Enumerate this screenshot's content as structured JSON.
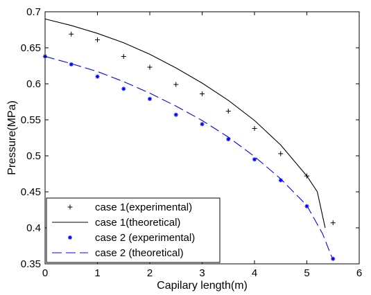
{
  "chart_data": {
    "type": "line",
    "title": "",
    "xlabel": "Capilary length(m)",
    "ylabel": "Pressure(MPa)",
    "xlim": [
      0,
      6
    ],
    "ylim": [
      0.35,
      0.7
    ],
    "xticks": [
      "0",
      "1",
      "2",
      "3",
      "4",
      "5",
      "6"
    ],
    "yticks": [
      "0.35",
      "0.4",
      "0.45",
      "0.5",
      "0.55",
      "0.6",
      "0.65",
      "0.7"
    ],
    "grid": false,
    "legend_position": "bottom-left",
    "series": [
      {
        "name": "case 1(experimental)",
        "kind": "marker",
        "marker": "plus",
        "color": "#000000",
        "x": [
          0.5,
          1.0,
          1.5,
          2.0,
          2.5,
          3.0,
          3.5,
          4.0,
          4.5,
          5.0,
          5.5
        ],
        "y": [
          0.669,
          0.661,
          0.638,
          0.623,
          0.599,
          0.586,
          0.562,
          0.538,
          0.503,
          0.472,
          0.407
        ]
      },
      {
        "name": "case 1(theoretical)",
        "kind": "line",
        "dash": "solid",
        "color": "#000000",
        "x": [
          0,
          0.5,
          1.0,
          1.5,
          2.0,
          2.5,
          3.0,
          3.5,
          4.0,
          4.5,
          5.0,
          5.2,
          5.35
        ],
        "y": [
          0.69,
          0.681,
          0.67,
          0.657,
          0.641,
          0.622,
          0.601,
          0.577,
          0.549,
          0.515,
          0.472,
          0.45,
          0.4
        ]
      },
      {
        "name": "case 2 (experimental)",
        "kind": "marker",
        "marker": "asterisk",
        "color": "#0000ff",
        "x": [
          0,
          0.5,
          1.0,
          1.5,
          2.0,
          2.5,
          3.0,
          3.5,
          4.0,
          4.5,
          5.0,
          5.5
        ],
        "y": [
          0.638,
          0.627,
          0.61,
          0.593,
          0.579,
          0.557,
          0.544,
          0.523,
          0.495,
          0.466,
          0.43,
          0.357
        ]
      },
      {
        "name": "case 2 (theoretical)",
        "kind": "line",
        "dash": "dashed",
        "color": "#0000ff",
        "x": [
          0,
          0.5,
          1.0,
          1.5,
          2.0,
          2.5,
          3.0,
          3.5,
          4.0,
          4.5,
          5.0,
          5.3,
          5.5
        ],
        "y": [
          0.638,
          0.628,
          0.617,
          0.603,
          0.587,
          0.569,
          0.549,
          0.526,
          0.499,
          0.468,
          0.431,
          0.392,
          0.355
        ]
      }
    ]
  }
}
